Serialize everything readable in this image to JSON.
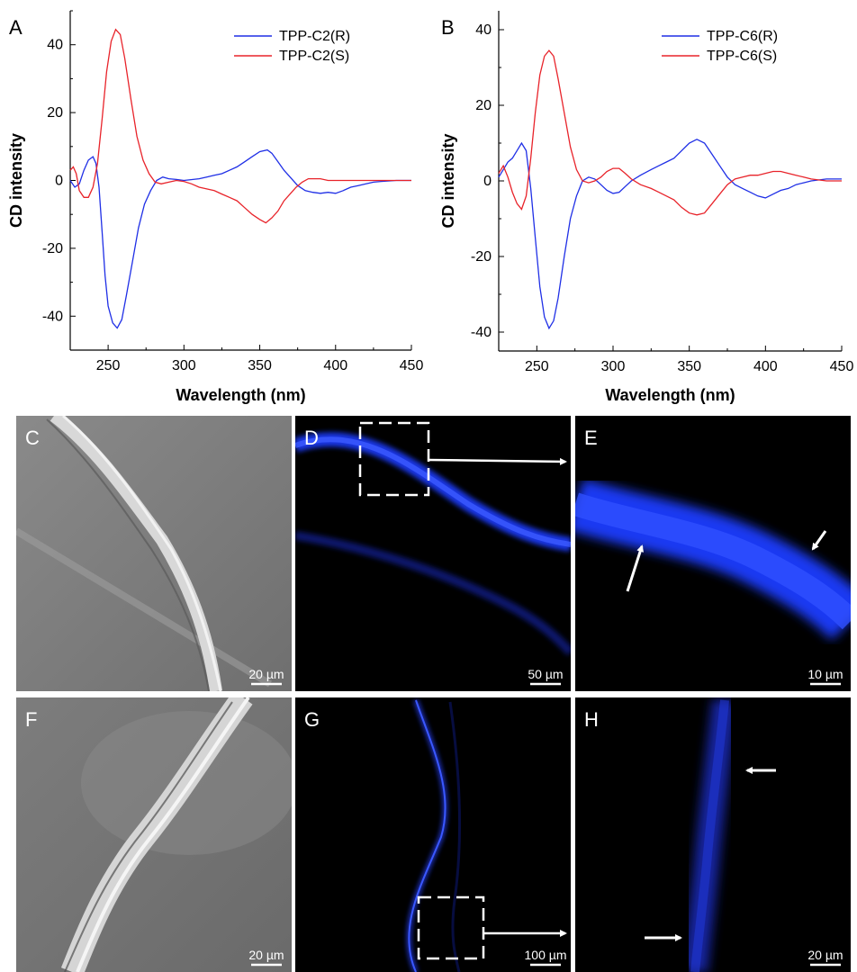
{
  "chart_data": [
    {
      "panel": "A",
      "type": "line",
      "xlabel": "Wavelength (nm)",
      "ylabel": "CD intensity",
      "xlim": [
        225,
        450
      ],
      "ylim": [
        -50,
        50
      ],
      "x_ticks": [
        250,
        300,
        350,
        400,
        450
      ],
      "y_ticks": [
        -40,
        -20,
        0,
        20,
        40
      ],
      "legend_position": "top-right",
      "series": [
        {
          "name": "TPP-C2(R)",
          "color": "#1f2fe6",
          "points": [
            [
              225,
              0
            ],
            [
              228,
              -2
            ],
            [
              231,
              -1
            ],
            [
              234,
              3
            ],
            [
              237,
              6
            ],
            [
              240,
              7
            ],
            [
              242,
              5
            ],
            [
              244,
              -2
            ],
            [
              246,
              -15
            ],
            [
              248,
              -28
            ],
            [
              250,
              -37
            ],
            [
              253,
              -42
            ],
            [
              256,
              -43.5
            ],
            [
              259,
              -41
            ],
            [
              262,
              -34
            ],
            [
              266,
              -24
            ],
            [
              270,
              -14
            ],
            [
              274,
              -7
            ],
            [
              278,
              -3
            ],
            [
              282,
              0
            ],
            [
              286,
              1
            ],
            [
              290,
              0.5
            ],
            [
              295,
              0.3
            ],
            [
              300,
              0
            ],
            [
              310,
              0.5
            ],
            [
              315,
              1
            ],
            [
              320,
              1.5
            ],
            [
              325,
              2
            ],
            [
              330,
              3
            ],
            [
              335,
              4
            ],
            [
              340,
              5.5
            ],
            [
              345,
              7
            ],
            [
              350,
              8.5
            ],
            [
              355,
              9
            ],
            [
              358,
              8
            ],
            [
              362,
              5.5
            ],
            [
              366,
              3
            ],
            [
              370,
              1
            ],
            [
              375,
              -1.5
            ],
            [
              380,
              -3
            ],
            [
              385,
              -3.5
            ],
            [
              390,
              -3.8
            ],
            [
              395,
              -3.5
            ],
            [
              400,
              -3.8
            ],
            [
              405,
              -3
            ],
            [
              410,
              -2
            ],
            [
              415,
              -1.5
            ],
            [
              420,
              -1
            ],
            [
              425,
              -0.5
            ],
            [
              430,
              -0.3
            ],
            [
              440,
              0
            ],
            [
              450,
              0
            ]
          ]
        },
        {
          "name": "TPP-C2(S)",
          "color": "#e8232a",
          "points": [
            [
              225,
              3
            ],
            [
              227,
              4
            ],
            [
              229,
              2
            ],
            [
              231,
              -3
            ],
            [
              234,
              -5
            ],
            [
              237,
              -5
            ],
            [
              240,
              -2
            ],
            [
              243,
              5
            ],
            [
              246,
              18
            ],
            [
              249,
              32
            ],
            [
              252,
              41
            ],
            [
              255,
              44.5
            ],
            [
              258,
              43
            ],
            [
              261,
              36
            ],
            [
              265,
              24
            ],
            [
              269,
              13
            ],
            [
              273,
              6
            ],
            [
              277,
              2
            ],
            [
              281,
              -0.5
            ],
            [
              285,
              -1
            ],
            [
              290,
              -0.5
            ],
            [
              295,
              0
            ],
            [
              300,
              -0.3
            ],
            [
              305,
              -1
            ],
            [
              310,
              -2
            ],
            [
              315,
              -2.5
            ],
            [
              320,
              -3
            ],
            [
              325,
              -4
            ],
            [
              330,
              -5
            ],
            [
              335,
              -6
            ],
            [
              340,
              -8
            ],
            [
              345,
              -10
            ],
            [
              350,
              -11.5
            ],
            [
              354,
              -12.5
            ],
            [
              358,
              -11
            ],
            [
              362,
              -9
            ],
            [
              366,
              -6
            ],
            [
              370,
              -4
            ],
            [
              374,
              -2
            ],
            [
              378,
              -0.5
            ],
            [
              382,
              0.5
            ],
            [
              386,
              0.5
            ],
            [
              390,
              0.5
            ],
            [
              395,
              0
            ],
            [
              400,
              0
            ],
            [
              410,
              0
            ],
            [
              420,
              0
            ],
            [
              430,
              0
            ],
            [
              440,
              0
            ],
            [
              450,
              0
            ]
          ]
        }
      ]
    },
    {
      "panel": "B",
      "type": "line",
      "xlabel": "Wavelength (nm)",
      "ylabel": "CD intensity",
      "xlim": [
        225,
        450
      ],
      "ylim": [
        -45,
        45
      ],
      "x_ticks": [
        250,
        300,
        350,
        400,
        450
      ],
      "y_ticks": [
        -40,
        -20,
        0,
        20,
        40
      ],
      "legend_position": "top-right",
      "series": [
        {
          "name": "TPP-C6(R)",
          "color": "#1f2fe6",
          "points": [
            [
              225,
              1
            ],
            [
              228,
              3
            ],
            [
              231,
              5
            ],
            [
              234,
              6
            ],
            [
              237,
              8
            ],
            [
              240,
              10
            ],
            [
              243,
              8
            ],
            [
              246,
              -2
            ],
            [
              249,
              -15
            ],
            [
              252,
              -28
            ],
            [
              255,
              -36
            ],
            [
              258,
              -39
            ],
            [
              261,
              -37
            ],
            [
              264,
              -31
            ],
            [
              268,
              -20
            ],
            [
              272,
              -10
            ],
            [
              276,
              -4
            ],
            [
              280,
              0
            ],
            [
              284,
              1
            ],
            [
              288,
              0.5
            ],
            [
              292,
              -1
            ],
            [
              296,
              -2.5
            ],
            [
              300,
              -3.3
            ],
            [
              304,
              -3
            ],
            [
              308,
              -1.5
            ],
            [
              312,
              0
            ],
            [
              318,
              1.5
            ],
            [
              325,
              3
            ],
            [
              330,
              4
            ],
            [
              335,
              5
            ],
            [
              340,
              6
            ],
            [
              345,
              8
            ],
            [
              350,
              10
            ],
            [
              355,
              11
            ],
            [
              360,
              10
            ],
            [
              365,
              7
            ],
            [
              370,
              4
            ],
            [
              375,
              1
            ],
            [
              380,
              -1
            ],
            [
              385,
              -2
            ],
            [
              390,
              -3
            ],
            [
              395,
              -4
            ],
            [
              400,
              -4.5
            ],
            [
              405,
              -3.5
            ],
            [
              410,
              -2.5
            ],
            [
              415,
              -2
            ],
            [
              420,
              -1
            ],
            [
              425,
              -0.5
            ],
            [
              430,
              0
            ],
            [
              440,
              0.5
            ],
            [
              450,
              0.5
            ]
          ]
        },
        {
          "name": "TPP-C6(S)",
          "color": "#e8232a",
          "points": [
            [
              225,
              2
            ],
            [
              228,
              4
            ],
            [
              231,
              1
            ],
            [
              234,
              -3
            ],
            [
              237,
              -6
            ],
            [
              240,
              -7.5
            ],
            [
              243,
              -4
            ],
            [
              246,
              6
            ],
            [
              249,
              18
            ],
            [
              252,
              28
            ],
            [
              255,
              33
            ],
            [
              258,
              34.5
            ],
            [
              261,
              33
            ],
            [
              264,
              27
            ],
            [
              268,
              18
            ],
            [
              272,
              9
            ],
            [
              276,
              3
            ],
            [
              280,
              0
            ],
            [
              284,
              -0.5
            ],
            [
              288,
              0
            ],
            [
              292,
              1
            ],
            [
              296,
              2.5
            ],
            [
              300,
              3.3
            ],
            [
              304,
              3.3
            ],
            [
              308,
              2
            ],
            [
              312,
              0.5
            ],
            [
              318,
              -1
            ],
            [
              325,
              -2
            ],
            [
              330,
              -3
            ],
            [
              335,
              -4
            ],
            [
              340,
              -5
            ],
            [
              345,
              -7
            ],
            [
              350,
              -8.5
            ],
            [
              355,
              -9
            ],
            [
              360,
              -8.5
            ],
            [
              365,
              -6
            ],
            [
              370,
              -3.5
            ],
            [
              375,
              -1
            ],
            [
              380,
              0.5
            ],
            [
              385,
              1
            ],
            [
              390,
              1.5
            ],
            [
              395,
              1.5
            ],
            [
              400,
              2
            ],
            [
              405,
              2.5
            ],
            [
              410,
              2.5
            ],
            [
              415,
              2
            ],
            [
              420,
              1.5
            ],
            [
              425,
              1
            ],
            [
              430,
              0.5
            ],
            [
              440,
              0
            ],
            [
              450,
              0
            ]
          ]
        }
      ]
    }
  ],
  "micrographs": [
    {
      "label": "C",
      "scale": "20 µm"
    },
    {
      "label": "D",
      "scale": "50 µm"
    },
    {
      "label": "E",
      "scale": "10 µm"
    },
    {
      "label": "F",
      "scale": "20 µm"
    },
    {
      "label": "G",
      "scale": "100 µm"
    },
    {
      "label": "H",
      "scale": "20 µm"
    }
  ]
}
